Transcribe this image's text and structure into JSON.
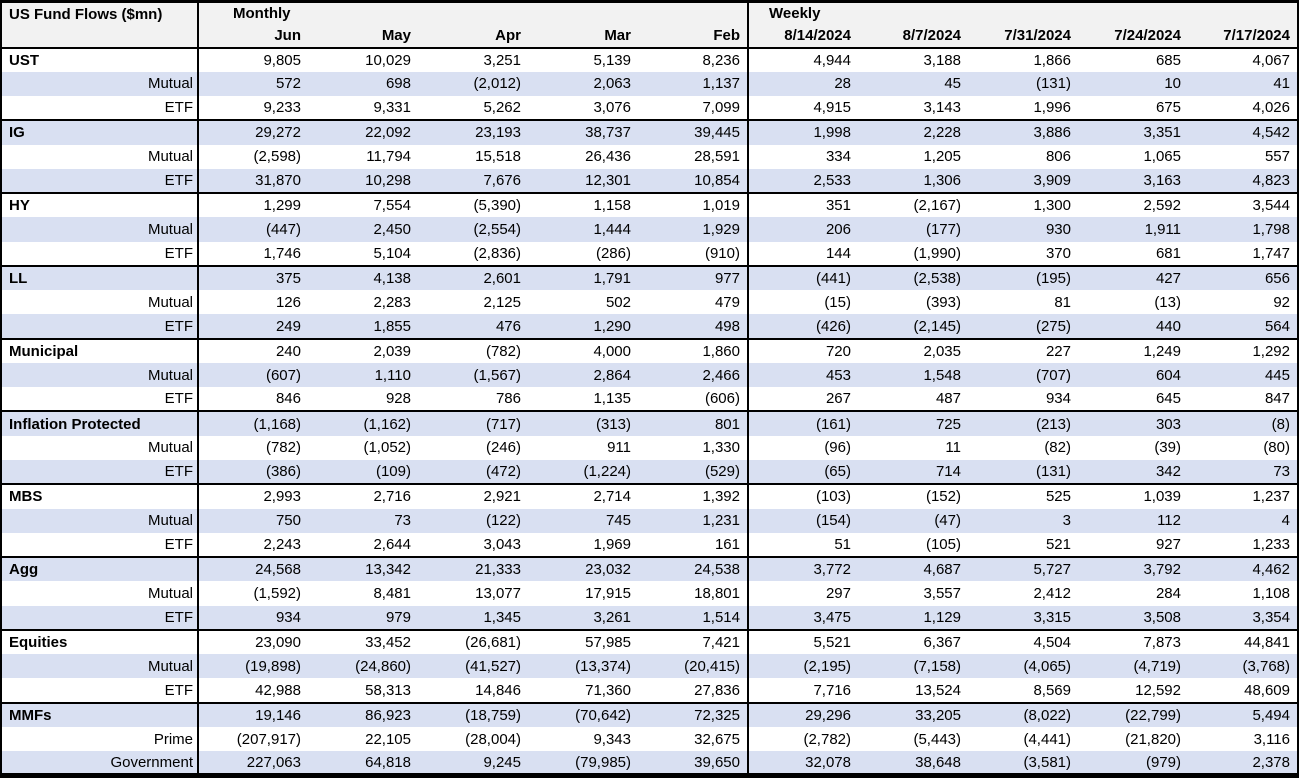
{
  "chart_data": {
    "type": "table",
    "title": "US Fund Flows ($mn)",
    "units": "$mn",
    "colors": {
      "accent_row": "#d9e0f2",
      "header_bg": "#f2f2f2",
      "border": "#000000"
    },
    "layout": {
      "row_shading": "alternating",
      "negative_format": "parentheses"
    },
    "column_groups": [
      {
        "label": "Monthly",
        "columns": [
          "Jun",
          "May",
          "Apr",
          "Mar",
          "Feb"
        ]
      },
      {
        "label": "Weekly",
        "columns": [
          "8/14/2024",
          "8/7/2024",
          "7/31/2024",
          "7/24/2024",
          "7/17/2024"
        ]
      }
    ],
    "groups": [
      {
        "category": "UST",
        "rows": [
          {
            "label": "UST",
            "bold": true,
            "values": [
              9805,
              10029,
              3251,
              5139,
              8236,
              4944,
              3188,
              1866,
              685,
              4067
            ]
          },
          {
            "label": "Mutual",
            "bold": false,
            "values": [
              572,
              698,
              -2012,
              2063,
              1137,
              28,
              45,
              -131,
              10,
              41
            ]
          },
          {
            "label": "ETF",
            "bold": false,
            "values": [
              9233,
              9331,
              5262,
              3076,
              7099,
              4915,
              3143,
              1996,
              675,
              4026
            ]
          }
        ]
      },
      {
        "category": "IG",
        "rows": [
          {
            "label": "IG",
            "bold": true,
            "values": [
              29272,
              22092,
              23193,
              38737,
              39445,
              1998,
              2228,
              3886,
              3351,
              4542
            ]
          },
          {
            "label": "Mutual",
            "bold": false,
            "values": [
              -2598,
              11794,
              15518,
              26436,
              28591,
              334,
              1205,
              806,
              1065,
              557
            ]
          },
          {
            "label": "ETF",
            "bold": false,
            "values": [
              31870,
              10298,
              7676,
              12301,
              10854,
              2533,
              1306,
              3909,
              3163,
              4823
            ]
          }
        ]
      },
      {
        "category": "HY",
        "rows": [
          {
            "label": "HY",
            "bold": true,
            "values": [
              1299,
              7554,
              -5390,
              1158,
              1019,
              351,
              -2167,
              1300,
              2592,
              3544
            ]
          },
          {
            "label": "Mutual",
            "bold": false,
            "values": [
              -447,
              2450,
              -2554,
              1444,
              1929,
              206,
              -177,
              930,
              1911,
              1798
            ]
          },
          {
            "label": "ETF",
            "bold": false,
            "values": [
              1746,
              5104,
              -2836,
              -286,
              -910,
              144,
              -1990,
              370,
              681,
              1747
            ]
          }
        ]
      },
      {
        "category": "LL",
        "rows": [
          {
            "label": "LL",
            "bold": true,
            "values": [
              375,
              4138,
              2601,
              1791,
              977,
              -441,
              -2538,
              -195,
              427,
              656
            ]
          },
          {
            "label": "Mutual",
            "bold": false,
            "values": [
              126,
              2283,
              2125,
              502,
              479,
              -15,
              -393,
              81,
              -13,
              92
            ]
          },
          {
            "label": "ETF",
            "bold": false,
            "values": [
              249,
              1855,
              476,
              1290,
              498,
              -426,
              -2145,
              -275,
              440,
              564
            ]
          }
        ]
      },
      {
        "category": "Municipal",
        "rows": [
          {
            "label": "Municipal",
            "bold": true,
            "values": [
              240,
              2039,
              -782,
              4000,
              1860,
              720,
              2035,
              227,
              1249,
              1292
            ]
          },
          {
            "label": "Mutual",
            "bold": false,
            "values": [
              -607,
              1110,
              -1567,
              2864,
              2466,
              453,
              1548,
              -707,
              604,
              445
            ]
          },
          {
            "label": "ETF",
            "bold": false,
            "values": [
              846,
              928,
              786,
              1135,
              -606,
              267,
              487,
              934,
              645,
              847
            ]
          }
        ]
      },
      {
        "category": "Inflation Protected",
        "rows": [
          {
            "label": "Inflation Protected",
            "bold": true,
            "values": [
              -1168,
              -1162,
              -717,
              -313,
              801,
              -161,
              725,
              -213,
              303,
              -8
            ]
          },
          {
            "label": "Mutual",
            "bold": false,
            "values": [
              -782,
              -1052,
              -246,
              911,
              1330,
              -96,
              11,
              -82,
              -39,
              -80
            ]
          },
          {
            "label": "ETF",
            "bold": false,
            "values": [
              -386,
              -109,
              -472,
              -1224,
              -529,
              -65,
              714,
              -131,
              342,
              73
            ]
          }
        ]
      },
      {
        "category": "MBS",
        "rows": [
          {
            "label": "MBS",
            "bold": true,
            "values": [
              2993,
              2716,
              2921,
              2714,
              1392,
              -103,
              -152,
              525,
              1039,
              1237
            ]
          },
          {
            "label": "Mutual",
            "bold": false,
            "values": [
              750,
              73,
              -122,
              745,
              1231,
              -154,
              -47,
              3,
              112,
              4
            ]
          },
          {
            "label": "ETF",
            "bold": false,
            "values": [
              2243,
              2644,
              3043,
              1969,
              161,
              51,
              -105,
              521,
              927,
              1233
            ]
          }
        ]
      },
      {
        "category": "Agg",
        "rows": [
          {
            "label": "Agg",
            "bold": true,
            "values": [
              24568,
              13342,
              21333,
              23032,
              24538,
              3772,
              4687,
              5727,
              3792,
              4462
            ]
          },
          {
            "label": "Mutual",
            "bold": false,
            "values": [
              -1592,
              8481,
              13077,
              17915,
              18801,
              297,
              3557,
              2412,
              284,
              1108
            ]
          },
          {
            "label": "ETF",
            "bold": false,
            "values": [
              934,
              979,
              1345,
              3261,
              1514,
              3475,
              1129,
              3315,
              3508,
              3354
            ]
          }
        ]
      },
      {
        "category": "Equities",
        "rows": [
          {
            "label": "Equities",
            "bold": true,
            "values": [
              23090,
              33452,
              -26681,
              57985,
              7421,
              5521,
              6367,
              4504,
              7873,
              44841
            ]
          },
          {
            "label": "Mutual",
            "bold": false,
            "values": [
              -19898,
              -24860,
              -41527,
              -13374,
              -20415,
              -2195,
              -7158,
              -4065,
              -4719,
              -3768
            ]
          },
          {
            "label": "ETF",
            "bold": false,
            "values": [
              42988,
              58313,
              14846,
              71360,
              27836,
              7716,
              13524,
              8569,
              12592,
              48609
            ]
          }
        ]
      },
      {
        "category": "MMFs",
        "rows": [
          {
            "label": "MMFs",
            "bold": true,
            "values": [
              19146,
              86923,
              -18759,
              -70642,
              72325,
              29296,
              33205,
              -8022,
              -22799,
              5494
            ]
          },
          {
            "label": "Prime",
            "bold": false,
            "values": [
              -207917,
              22105,
              -28004,
              9343,
              32675,
              -2782,
              -5443,
              -4441,
              -21820,
              3116
            ]
          },
          {
            "label": "Government",
            "bold": false,
            "values": [
              227063,
              64818,
              9245,
              -79985,
              39650,
              32078,
              38648,
              -3581,
              -979,
              2378
            ]
          }
        ]
      }
    ]
  }
}
